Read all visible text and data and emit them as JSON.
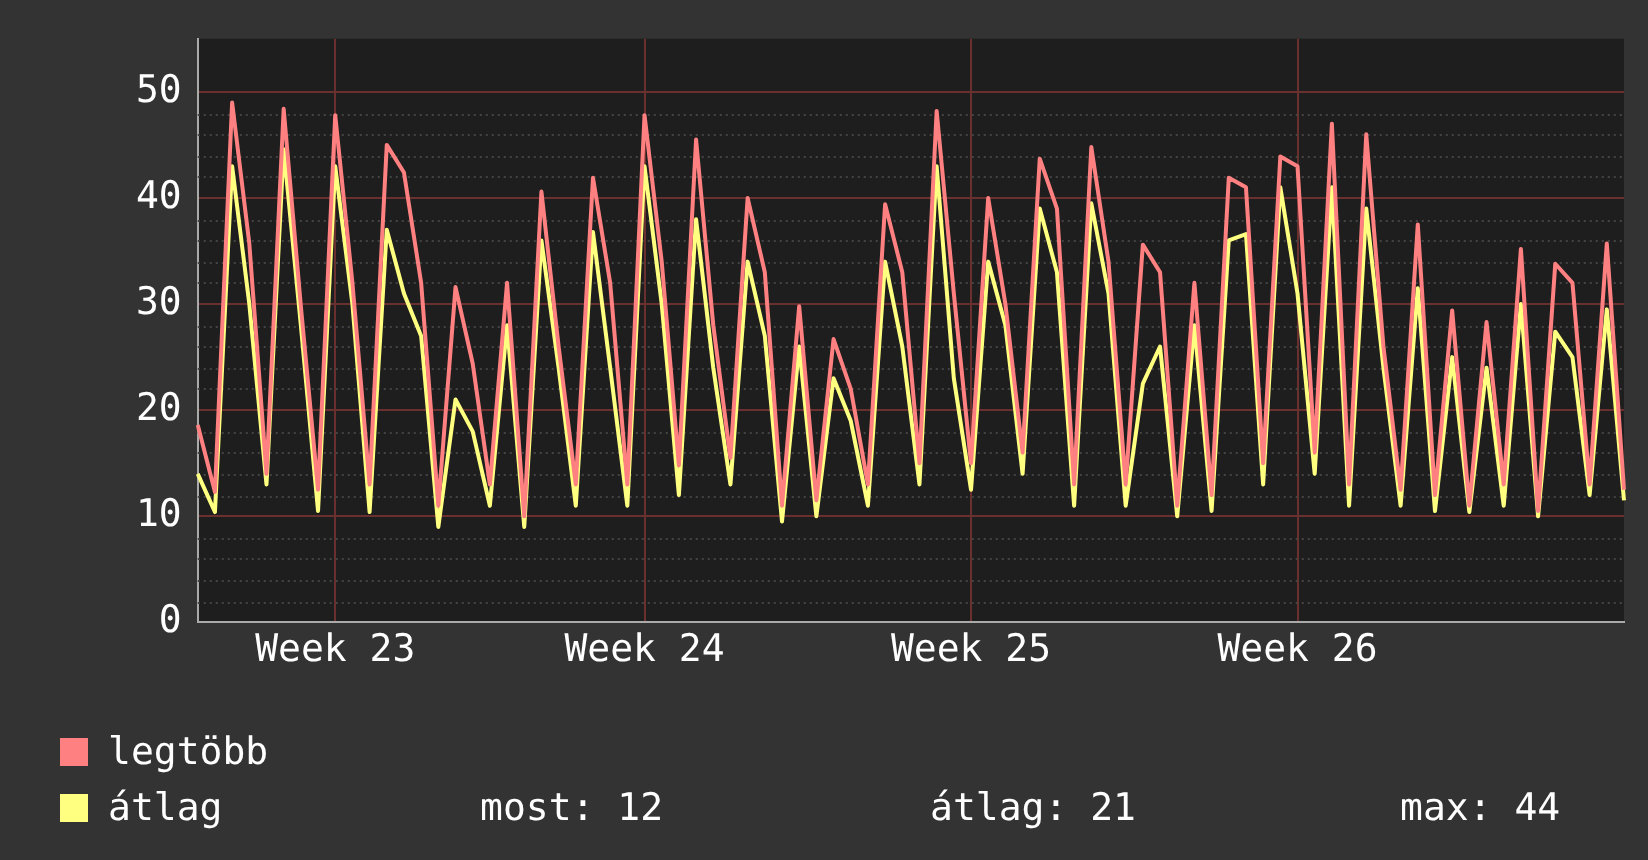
{
  "chart_data": {
    "type": "line",
    "categories": [
      null,
      null,
      null,
      null,
      null,
      null,
      null,
      null,
      "Week 23",
      null,
      null,
      null,
      null,
      null,
      null,
      null,
      null,
      null,
      null,
      null,
      null,
      null,
      null,
      null,
      null,
      null,
      "Week 24",
      null,
      null,
      null,
      null,
      null,
      null,
      null,
      null,
      null,
      null,
      null,
      null,
      null,
      null,
      null,
      null,
      null,
      null,
      "Week 25",
      null,
      null,
      null,
      null,
      null,
      null,
      null,
      null,
      null,
      null,
      null,
      null,
      null,
      null,
      null,
      null,
      null,
      null,
      "Week 26",
      null,
      null,
      null,
      null,
      null,
      null,
      null,
      null,
      null,
      null,
      null,
      null,
      null,
      null,
      null,
      null,
      null,
      null,
      null
    ],
    "series": [
      {
        "name": "legtöbb",
        "color": "#ff8080",
        "values": [
          18.6,
          12.3,
          49,
          35.7,
          14,
          48.4,
          29.8,
          12.5,
          47.8,
          32,
          13,
          45,
          42.4,
          32,
          11,
          31.6,
          24.4,
          13,
          32,
          10,
          40.6,
          26,
          13,
          41.9,
          32,
          13,
          47.8,
          34,
          14.8,
          45.5,
          28,
          15.5,
          40,
          33,
          11,
          29.8,
          11.5,
          26.7,
          22,
          13,
          39.4,
          33,
          15,
          48.2,
          31,
          15,
          40,
          30,
          16,
          43.7,
          39,
          13,
          44.8,
          34,
          13,
          35.6,
          33,
          11,
          32,
          12,
          41.9,
          41,
          15,
          43.9,
          43,
          16,
          47,
          13,
          46,
          26,
          12.5,
          37.5,
          12,
          29.4,
          11,
          28.3,
          13,
          35.2,
          10.5,
          33.8,
          32,
          13,
          35.7,
          12.5
        ]
      },
      {
        "name": "átlag",
        "color": "#ffff80",
        "values": [
          14,
          10.4,
          43,
          30,
          13,
          44.6,
          28,
          10.5,
          43,
          30,
          10.4,
          37,
          31,
          27,
          9,
          21,
          18,
          11,
          28,
          9,
          36,
          24,
          11,
          36.8,
          24,
          11,
          43,
          30,
          12,
          38,
          24,
          13,
          34,
          27,
          9.5,
          26,
          10,
          23,
          19,
          11,
          34,
          26,
          13,
          43,
          23,
          12.5,
          34,
          28,
          14,
          39,
          33,
          11,
          39.5,
          31,
          11,
          22.5,
          26,
          10,
          28,
          10.5,
          36,
          36.6,
          13,
          41,
          31,
          14,
          41,
          11,
          39,
          24,
          11,
          31.5,
          10.5,
          25,
          10.4,
          24,
          11,
          30,
          10,
          27.4,
          25,
          12,
          29.5,
          11.5
        ]
      }
    ],
    "ylim": [
      0,
      55
    ],
    "yticks": [
      0,
      10,
      20,
      30,
      40,
      50
    ],
    "grid": true,
    "legend": "bottom left",
    "marker": "none",
    "annotations": [
      "most: 12",
      "átlag: 21",
      "max: 44"
    ]
  }
}
